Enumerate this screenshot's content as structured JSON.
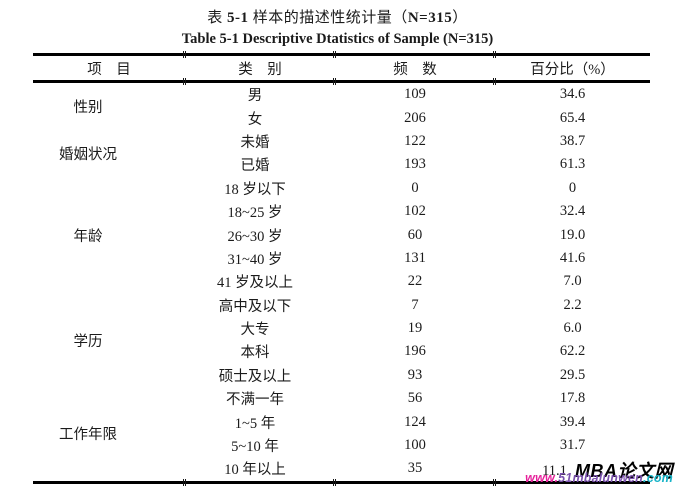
{
  "titles": {
    "zh_parts": {
      "p1": "表 ",
      "p2": "5-1",
      "p3": " 样本的描述性统计量（",
      "p4": "N=315",
      "p5": "）"
    },
    "en": "Table 5-1 Descriptive Dtatistics of Sample (N=315)"
  },
  "table": {
    "headers": [
      "项　目",
      "类　别",
      "频　数",
      "百分比（%）"
    ],
    "groups": [
      {
        "label": "性别",
        "rows": [
          [
            "男",
            "109",
            "34.6"
          ],
          [
            "女",
            "206",
            "65.4"
          ]
        ]
      },
      {
        "label": "婚姻状况",
        "rows": [
          [
            "未婚",
            "122",
            "38.7"
          ],
          [
            "已婚",
            "193",
            "61.3"
          ]
        ]
      },
      {
        "label": "年龄",
        "rows": [
          [
            "18 岁以下",
            "0",
            "0"
          ],
          [
            "18~25 岁",
            "102",
            "32.4"
          ],
          [
            "26~30 岁",
            "60",
            "19.0"
          ],
          [
            "31~40 岁",
            "131",
            "41.6"
          ],
          [
            "41 岁及以上",
            "22",
            "7.0"
          ]
        ]
      },
      {
        "label": "学历",
        "rows": [
          [
            "高中及以下",
            "7",
            "2.2"
          ],
          [
            "大专",
            "19",
            "6.0"
          ],
          [
            "本科",
            "196",
            "62.2"
          ],
          [
            "硕士及以上",
            "93",
            "29.5"
          ]
        ]
      },
      {
        "label": "工作年限",
        "rows": [
          [
            "不满一年",
            "56",
            "17.8"
          ],
          [
            "1~5 年",
            "124",
            "39.4"
          ],
          [
            "5~10 年",
            "100",
            "31.7"
          ],
          [
            "10 年以上",
            "35",
            "11.1"
          ]
        ]
      }
    ]
  },
  "watermark": {
    "brand": "MBA论文网",
    "url_parts": [
      "www.",
      "51mbalunwen",
      ".com"
    ],
    "url_colors": [
      "#e6219b",
      "#7b52ae",
      "#18b4c8"
    ]
  },
  "colors": {
    "rule": "#000000",
    "text": "#1b1b1b",
    "background": "#ffffff"
  }
}
